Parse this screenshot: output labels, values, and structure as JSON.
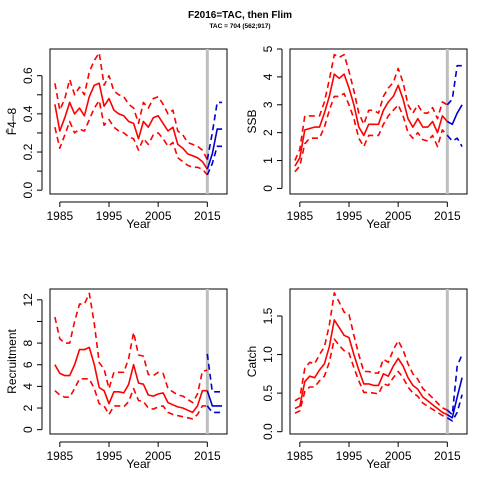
{
  "header": {
    "title": "F2016=TAC, then Flim",
    "subtitle": "TAC = 704 (562;917)"
  },
  "colors": {
    "historic": "#ff0000",
    "projection": "#0000cd",
    "marker_line": "#bebebe"
  },
  "chart_data": [
    {
      "type": "line",
      "ylabel": "F̄4–8",
      "xlabel": "Year",
      "xlim": [
        1983,
        2019
      ],
      "xticks": [
        1985,
        1995,
        2005,
        2015
      ],
      "ylim": [
        -0.02,
        0.74
      ],
      "yticks": [
        "0.0",
        "0.2",
        "0.4",
        "0.6"
      ],
      "ytick_values": [
        0.0,
        0.2,
        0.4,
        0.6
      ],
      "ytick_minor": [
        0.1,
        0.3,
        0.5
      ],
      "vline_year": 2015,
      "historic": {
        "x": [
          1984,
          1985,
          1986,
          1987,
          1988,
          1989,
          1990,
          1991,
          1992,
          1993,
          1994,
          1995,
          1996,
          1997,
          1998,
          1999,
          2000,
          2001,
          2002,
          2003,
          2004,
          2005,
          2006,
          2007,
          2008,
          2009,
          2010,
          2011,
          2012,
          2013,
          2014,
          2015
        ],
        "median": [
          0.45,
          0.31,
          0.38,
          0.46,
          0.4,
          0.43,
          0.39,
          0.49,
          0.55,
          0.56,
          0.44,
          0.48,
          0.42,
          0.4,
          0.39,
          0.36,
          0.35,
          0.27,
          0.36,
          0.33,
          0.38,
          0.39,
          0.35,
          0.31,
          0.33,
          0.24,
          0.22,
          0.19,
          0.18,
          0.17,
          0.15,
          0.11
        ],
        "lower": [
          0.33,
          0.22,
          0.29,
          0.36,
          0.3,
          0.32,
          0.31,
          0.37,
          0.43,
          0.47,
          0.34,
          0.37,
          0.33,
          0.31,
          0.3,
          0.28,
          0.27,
          0.21,
          0.27,
          0.24,
          0.29,
          0.3,
          0.27,
          0.23,
          0.25,
          0.17,
          0.15,
          0.13,
          0.12,
          0.12,
          0.11,
          0.08
        ],
        "upper": [
          0.56,
          0.42,
          0.48,
          0.58,
          0.5,
          0.54,
          0.5,
          0.62,
          0.68,
          0.72,
          0.55,
          0.6,
          0.52,
          0.5,
          0.49,
          0.45,
          0.43,
          0.35,
          0.46,
          0.43,
          0.48,
          0.49,
          0.45,
          0.4,
          0.42,
          0.31,
          0.29,
          0.25,
          0.24,
          0.23,
          0.21,
          0.16
        ]
      },
      "projection": {
        "x": [
          2015,
          2016,
          2017,
          2018
        ],
        "median": [
          0.11,
          0.19,
          0.32,
          0.32
        ],
        "lower": [
          0.08,
          0.14,
          0.23,
          0.23
        ],
        "upper": [
          0.16,
          0.3,
          0.46,
          0.46
        ]
      }
    },
    {
      "type": "line",
      "ylabel": "SSB",
      "xlabel": "Year",
      "xlim": [
        1983,
        2019
      ],
      "xticks": [
        1985,
        1995,
        2005,
        2015
      ],
      "ylim": [
        -0.2,
        5.0
      ],
      "yticks": [
        "0",
        "1",
        "2",
        "3",
        "4",
        "5"
      ],
      "ytick_values": [
        0,
        1,
        2,
        3,
        4,
        5
      ],
      "vline_year": 2015,
      "historic": {
        "x": [
          1984,
          1985,
          1986,
          1987,
          1988,
          1989,
          1990,
          1991,
          1992,
          1993,
          1994,
          1995,
          1996,
          1997,
          1998,
          1999,
          2000,
          2001,
          2002,
          2003,
          2004,
          2005,
          2006,
          2007,
          2008,
          2009,
          2010,
          2011,
          2012,
          2013,
          2014,
          2015
        ],
        "median": [
          0.8,
          1.1,
          2.1,
          2.15,
          2.2,
          2.2,
          2.7,
          3.3,
          4.1,
          3.95,
          4.1,
          3.6,
          3.0,
          2.2,
          1.9,
          2.3,
          2.3,
          2.3,
          2.8,
          3.1,
          3.3,
          3.7,
          3.2,
          2.5,
          2.2,
          2.5,
          2.2,
          2.2,
          2.4,
          2.0,
          2.6,
          2.4
        ],
        "lower": [
          0.6,
          0.8,
          1.6,
          1.8,
          1.8,
          1.8,
          2.2,
          2.8,
          3.3,
          3.3,
          3.4,
          3.0,
          2.5,
          1.8,
          1.5,
          1.9,
          1.9,
          1.9,
          2.3,
          2.6,
          2.8,
          3.0,
          2.6,
          2.0,
          1.8,
          2.0,
          1.75,
          1.7,
          1.9,
          1.5,
          2.1,
          1.9
        ],
        "upper": [
          1.0,
          1.4,
          2.6,
          2.6,
          2.6,
          2.6,
          3.1,
          3.9,
          4.8,
          4.7,
          4.8,
          4.2,
          3.5,
          2.7,
          2.3,
          2.8,
          2.8,
          2.7,
          3.3,
          3.6,
          3.8,
          4.3,
          3.8,
          3.0,
          2.7,
          3.0,
          2.7,
          2.7,
          2.9,
          2.5,
          3.1,
          3.0
        ]
      },
      "projection": {
        "x": [
          2015,
          2016,
          2017,
          2018
        ],
        "median": [
          2.4,
          2.3,
          2.7,
          3.0
        ],
        "lower": [
          1.9,
          1.7,
          1.8,
          1.5
        ],
        "upper": [
          3.0,
          3.2,
          4.4,
          4.4
        ]
      }
    },
    {
      "type": "line",
      "ylabel": "Recruitment",
      "xlabel": "Year",
      "xlim": [
        1983,
        2019
      ],
      "xticks": [
        1985,
        1995,
        2005,
        2015
      ],
      "ylim": [
        -0.4,
        13.0
      ],
      "yticks": [
        "0",
        "2",
        "4",
        "6",
        "8",
        "12"
      ],
      "ytick_values": [
        0,
        2,
        4,
        6,
        8,
        12
      ],
      "ytick_minor": [
        10
      ],
      "vline_year": 2015,
      "historic": {
        "x": [
          1984,
          1985,
          1986,
          1987,
          1988,
          1989,
          1990,
          1991,
          1992,
          1993,
          1994,
          1995,
          1996,
          1997,
          1998,
          1999,
          2000,
          2001,
          2002,
          2003,
          2004,
          2005,
          2006,
          2007,
          2008,
          2009,
          2010,
          2011,
          2012,
          2013,
          2014,
          2015
        ],
        "median": [
          6.0,
          5.2,
          5.0,
          5.0,
          6.0,
          7.4,
          7.4,
          7.6,
          6.0,
          3.9,
          3.6,
          2.4,
          3.5,
          3.5,
          3.4,
          4.2,
          6.0,
          4.3,
          4.2,
          3.2,
          3.1,
          3.3,
          3.4,
          2.5,
          2.3,
          2.1,
          2.0,
          1.8,
          1.6,
          2.2,
          3.6,
          3.6
        ],
        "lower": [
          3.6,
          3.2,
          3.0,
          3.0,
          3.8,
          4.7,
          4.7,
          4.7,
          3.8,
          2.4,
          2.2,
          1.4,
          2.2,
          2.2,
          2.1,
          2.6,
          3.8,
          2.7,
          2.6,
          2.0,
          1.9,
          2.1,
          2.2,
          1.6,
          1.4,
          1.3,
          1.2,
          1.1,
          1.0,
          1.4,
          2.2,
          2.2
        ],
        "upper": [
          10.4,
          8.4,
          8.0,
          8.0,
          10.0,
          11.6,
          11.6,
          12.6,
          9.8,
          6.2,
          5.6,
          3.8,
          5.3,
          5.3,
          5.3,
          6.6,
          9.0,
          6.9,
          6.8,
          5.1,
          5.0,
          5.3,
          5.2,
          3.8,
          3.5,
          3.2,
          3.1,
          2.8,
          2.5,
          3.3,
          5.4,
          5.5
        ]
      },
      "projection": {
        "x": [
          2015,
          2016,
          2017,
          2018
        ],
        "median": [
          3.6,
          2.2,
          2.2,
          2.2
        ],
        "lower": [
          2.2,
          1.6,
          1.6,
          1.6
        ],
        "upper": [
          7.0,
          3.5,
          3.5,
          3.5
        ]
      }
    },
    {
      "type": "line",
      "ylabel": "Catch",
      "xlabel": "Year",
      "xlim": [
        1983,
        2019
      ],
      "xticks": [
        1985,
        1995,
        2005,
        2015
      ],
      "ylim": [
        -0.03,
        1.85
      ],
      "yticks": [
        "0.0",
        "0.5",
        "1.0",
        "1.5"
      ],
      "ytick_values": [
        0.0,
        0.5,
        1.0,
        1.5
      ],
      "vline_year": 2015,
      "historic": {
        "x": [
          1984,
          1985,
          1986,
          1987,
          1988,
          1989,
          1990,
          1991,
          1992,
          1993,
          1994,
          1995,
          1996,
          1997,
          1998,
          1999,
          2000,
          2001,
          2002,
          2003,
          2004,
          2005,
          2006,
          2007,
          2008,
          2009,
          2010,
          2011,
          2012,
          2013,
          2014,
          2015
        ],
        "median": [
          0.3,
          0.33,
          0.65,
          0.72,
          0.7,
          0.8,
          0.88,
          1.1,
          1.45,
          1.35,
          1.25,
          1.22,
          1.0,
          0.8,
          0.62,
          0.62,
          0.6,
          0.6,
          0.75,
          0.72,
          0.85,
          0.95,
          0.85,
          0.7,
          0.6,
          0.55,
          0.45,
          0.4,
          0.35,
          0.3,
          0.25,
          0.22
        ],
        "lower": [
          0.24,
          0.27,
          0.52,
          0.58,
          0.58,
          0.66,
          0.72,
          0.9,
          1.2,
          1.12,
          1.05,
          1.02,
          0.83,
          0.66,
          0.51,
          0.51,
          0.5,
          0.49,
          0.62,
          0.6,
          0.7,
          0.78,
          0.7,
          0.58,
          0.5,
          0.46,
          0.37,
          0.33,
          0.29,
          0.25,
          0.21,
          0.18
        ],
        "upper": [
          0.4,
          0.44,
          0.82,
          0.9,
          0.88,
          1.0,
          1.1,
          1.38,
          1.8,
          1.68,
          1.55,
          1.52,
          1.25,
          1.0,
          0.78,
          0.78,
          0.76,
          0.76,
          0.94,
          0.9,
          1.06,
          1.18,
          1.06,
          0.88,
          0.75,
          0.68,
          0.56,
          0.5,
          0.44,
          0.37,
          0.31,
          0.28
        ]
      },
      "projection": {
        "x": [
          2015,
          2016,
          2017,
          2018
        ],
        "median": [
          0.22,
          0.18,
          0.45,
          0.7
        ],
        "lower": [
          0.18,
          0.14,
          0.25,
          0.48
        ],
        "upper": [
          0.28,
          0.22,
          0.85,
          1.0
        ]
      }
    }
  ]
}
